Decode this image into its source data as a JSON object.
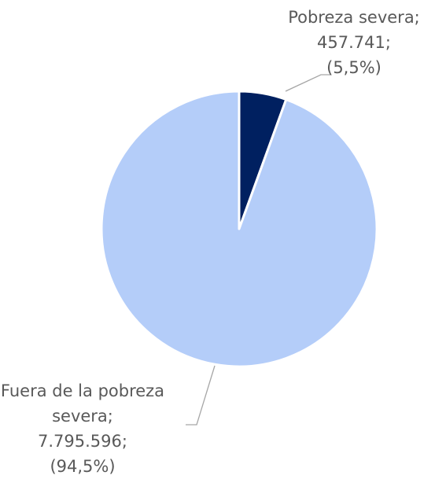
{
  "chart_data": {
    "type": "pie",
    "categories": [
      "Pobreza severa;",
      "Fuera de la pobreza severa;"
    ],
    "values": [
      457741,
      7795596
    ],
    "value_labels": [
      "457.741;",
      "7.795.596;"
    ],
    "percents": [
      5.5,
      94.5
    ],
    "percent_labels": [
      "(5,5%)",
      "(94,5%)"
    ],
    "colors": [
      "#002060",
      "#b4cdf9"
    ]
  }
}
